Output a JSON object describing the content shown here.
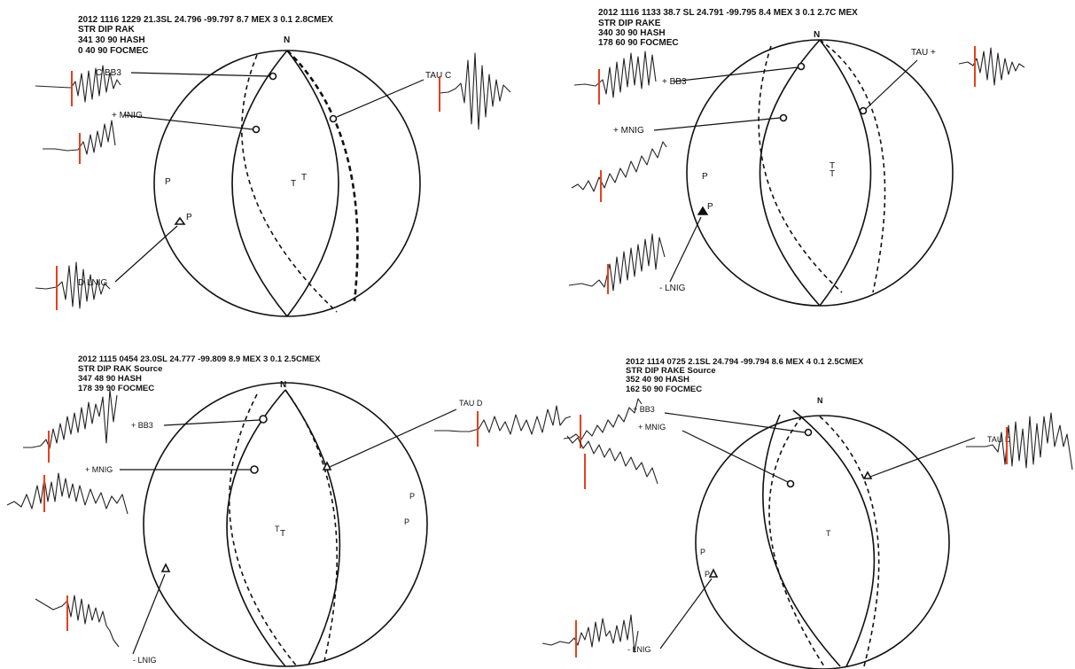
{
  "panels": [
    {
      "header": [
        "2012 1116 1229 21.3SL 24.796 -99.797 8.7 MEX 3 0.1 2.8CMEX",
        "STR DIP RAK",
        "341 30 90 HASH",
        "0 40 90 FOCMEC"
      ],
      "north": "N",
      "stations": [
        "C BB3",
        "+ MNIG",
        "TAU C",
        "D LNIG"
      ],
      "axes": [
        "P",
        "P",
        "T",
        "T"
      ]
    },
    {
      "header": [
        "2012 1116 1133 38.7 SL 24.791 -99.795 8.4 MEX 3 0.1 2.7C MEX",
        "STR DIP RAKE",
        "340 30 90 HASH",
        "178 60 90 FOCMEC"
      ],
      "north": "N",
      "stations": [
        "+ BB3",
        "+ MNIG",
        "TAU +",
        "- LNIG"
      ],
      "axes": [
        "P",
        "P",
        "T",
        "T"
      ]
    },
    {
      "header": [
        "2012 1115 0454 23.0SL 24.777 -99.809 8.9 MEX 3 0.1 2.5CMEX",
        "STR DIP RAK Source",
        "347 48 90 HASH",
        "178 39 90 FOCMEC"
      ],
      "north": "N",
      "stations": [
        "+ BB3",
        "+ MNIG",
        "TAU D",
        "- LNIG"
      ],
      "axes": [
        "P",
        "P",
        "T",
        "T"
      ]
    },
    {
      "header": [
        "2012 1114 0725 2.1SL 24.794 -99.794 8.6 MEX 4 0.1 2.5CMEX",
        "STR DIP RAKE Source",
        "352 40 90 HASH",
        "162 50 90 FOCMEC"
      ],
      "north": "N",
      "stations": [
        "+ BB3",
        "+ MNIG",
        "TAU D",
        "- LNIG"
      ],
      "axes": [
        "P",
        "P",
        "T"
      ]
    }
  ]
}
